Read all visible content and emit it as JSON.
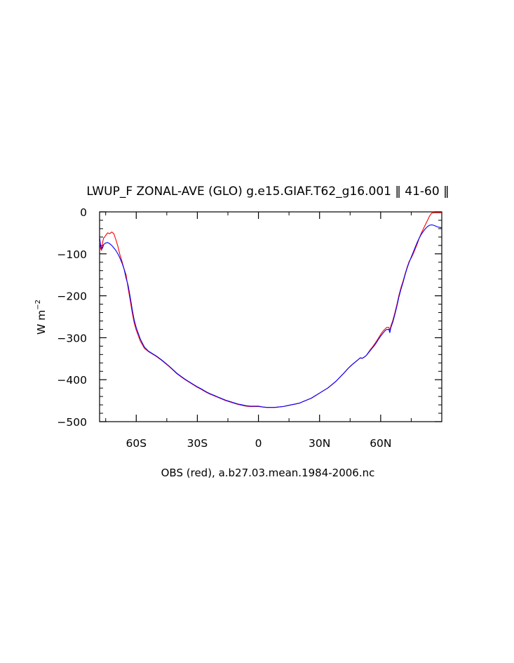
{
  "chart_data": {
    "type": "line",
    "title": "LWUP_F ZONAL-AVE (GLO) g.e15.GIAF.T62_g16.001 ‖ 41-60 ‖",
    "xlabel": "OBS (red), a.b27.03.mean.1984-2006.nc",
    "ylabel": {
      "base": "W m",
      "superscript": "−2"
    },
    "xlim": [
      -78,
      90
    ],
    "ylim": [
      -500,
      0
    ],
    "xticks": [
      {
        "value": -60,
        "label": "60S"
      },
      {
        "value": -30,
        "label": "30S"
      },
      {
        "value": 0,
        "label": "0"
      },
      {
        "value": 30,
        "label": "30N"
      },
      {
        "value": 60,
        "label": "60N"
      }
    ],
    "yticks": [
      {
        "value": 0,
        "label": "0"
      },
      {
        "value": -100,
        "label": "−100"
      },
      {
        "value": -200,
        "label": "−200"
      },
      {
        "value": -300,
        "label": "−300"
      },
      {
        "value": -400,
        "label": "−400"
      },
      {
        "value": -500,
        "label": "−500"
      }
    ],
    "series": [
      {
        "name": "OBS",
        "color": "#ff0000",
        "points": [
          [
            -78,
            -70
          ],
          [
            -77.5,
            -88
          ],
          [
            -77,
            -92
          ],
          [
            -76.5,
            -72
          ],
          [
            -76,
            -62
          ],
          [
            -75.5,
            -60
          ],
          [
            -75,
            -56
          ],
          [
            -74,
            -50
          ],
          [
            -73,
            -52
          ],
          [
            -72,
            -48
          ],
          [
            -71,
            -52
          ],
          [
            -70,
            -66
          ],
          [
            -69,
            -82
          ],
          [
            -68,
            -102
          ],
          [
            -67,
            -118
          ],
          [
            -66,
            -136
          ],
          [
            -65,
            -150
          ],
          [
            -64,
            -182
          ],
          [
            -63,
            -210
          ],
          [
            -62,
            -240
          ],
          [
            -61,
            -265
          ],
          [
            -60,
            -282
          ],
          [
            -58,
            -308
          ],
          [
            -56,
            -325
          ],
          [
            -54,
            -333
          ],
          [
            -52,
            -339
          ],
          [
            -50,
            -345
          ],
          [
            -48,
            -352
          ],
          [
            -46,
            -360
          ],
          [
            -44,
            -368
          ],
          [
            -42,
            -377
          ],
          [
            -40,
            -386
          ],
          [
            -38,
            -393
          ],
          [
            -36,
            -400
          ],
          [
            -34,
            -406
          ],
          [
            -32,
            -412
          ],
          [
            -30,
            -418
          ],
          [
            -28,
            -423
          ],
          [
            -26,
            -429
          ],
          [
            -24,
            -434
          ],
          [
            -22,
            -438
          ],
          [
            -20,
            -442
          ],
          [
            -18,
            -446
          ],
          [
            -16,
            -450
          ],
          [
            -14,
            -453
          ],
          [
            -12,
            -456
          ],
          [
            -10,
            -459
          ],
          [
            -8,
            -461
          ],
          [
            -6,
            -463
          ],
          [
            -4,
            -464
          ],
          [
            -2,
            -464
          ],
          [
            0,
            -464
          ],
          [
            2,
            -465
          ],
          [
            4,
            -466
          ],
          [
            6,
            -466
          ],
          [
            8,
            -466
          ],
          [
            10,
            -465
          ],
          [
            12,
            -464
          ],
          [
            14,
            -462
          ],
          [
            16,
            -460
          ],
          [
            18,
            -458
          ],
          [
            20,
            -456
          ],
          [
            22,
            -452
          ],
          [
            24,
            -448
          ],
          [
            26,
            -444
          ],
          [
            28,
            -438
          ],
          [
            30,
            -432
          ],
          [
            32,
            -426
          ],
          [
            34,
            -420
          ],
          [
            36,
            -412
          ],
          [
            38,
            -404
          ],
          [
            40,
            -394
          ],
          [
            42,
            -384
          ],
          [
            44,
            -373
          ],
          [
            46,
            -364
          ],
          [
            48,
            -356
          ],
          [
            49,
            -352
          ],
          [
            50,
            -348
          ],
          [
            51,
            -349
          ],
          [
            52,
            -346
          ],
          [
            53,
            -342
          ],
          [
            54,
            -335
          ],
          [
            55,
            -328
          ],
          [
            56,
            -322
          ],
          [
            57,
            -315
          ],
          [
            58,
            -308
          ],
          [
            59,
            -300
          ],
          [
            60,
            -292
          ],
          [
            61,
            -285
          ],
          [
            62,
            -280
          ],
          [
            63,
            -275
          ],
          [
            64,
            -275
          ],
          [
            64.5,
            -282
          ],
          [
            65,
            -272
          ],
          [
            66,
            -258
          ],
          [
            67,
            -240
          ],
          [
            68,
            -220
          ],
          [
            69,
            -198
          ],
          [
            70,
            -180
          ],
          [
            71,
            -165
          ],
          [
            72,
            -148
          ],
          [
            73,
            -132
          ],
          [
            74,
            -118
          ],
          [
            75,
            -110
          ],
          [
            76,
            -100
          ],
          [
            77,
            -88
          ],
          [
            78,
            -76
          ],
          [
            79,
            -62
          ],
          [
            80,
            -50
          ],
          [
            81,
            -40
          ],
          [
            82,
            -30
          ],
          [
            83,
            -20
          ],
          [
            84,
            -10
          ],
          [
            85,
            -3
          ],
          [
            86,
            -2
          ],
          [
            88,
            -2
          ],
          [
            90,
            -2
          ]
        ]
      },
      {
        "name": "g.e15.GIAF.T62_g16.001",
        "color": "#0000ff",
        "points": [
          [
            -78,
            -60
          ],
          [
            -77.5,
            -80
          ],
          [
            -77,
            -88
          ],
          [
            -76.5,
            -86
          ],
          [
            -76,
            -78
          ],
          [
            -75,
            -74
          ],
          [
            -74,
            -73
          ],
          [
            -73,
            -76
          ],
          [
            -72,
            -80
          ],
          [
            -71,
            -86
          ],
          [
            -70,
            -92
          ],
          [
            -69,
            -100
          ],
          [
            -68,
            -110
          ],
          [
            -67,
            -122
          ],
          [
            -66,
            -136
          ],
          [
            -65,
            -158
          ],
          [
            -64,
            -175
          ],
          [
            -63,
            -202
          ],
          [
            -62,
            -232
          ],
          [
            -61,
            -258
          ],
          [
            -60,
            -276
          ],
          [
            -58,
            -303
          ],
          [
            -56,
            -322
          ],
          [
            -54,
            -332
          ],
          [
            -52,
            -338
          ],
          [
            -50,
            -344
          ],
          [
            -48,
            -351
          ],
          [
            -46,
            -359
          ],
          [
            -44,
            -367
          ],
          [
            -42,
            -376
          ],
          [
            -40,
            -385
          ],
          [
            -38,
            -392
          ],
          [
            -36,
            -399
          ],
          [
            -34,
            -405
          ],
          [
            -32,
            -411
          ],
          [
            -30,
            -417
          ],
          [
            -28,
            -422
          ],
          [
            -26,
            -428
          ],
          [
            -24,
            -433
          ],
          [
            -22,
            -437
          ],
          [
            -20,
            -441
          ],
          [
            -18,
            -445
          ],
          [
            -16,
            -449
          ],
          [
            -14,
            -452
          ],
          [
            -12,
            -455
          ],
          [
            -10,
            -458
          ],
          [
            -8,
            -460
          ],
          [
            -6,
            -462
          ],
          [
            -4,
            -463
          ],
          [
            -2,
            -463
          ],
          [
            0,
            -463
          ],
          [
            2,
            -465
          ],
          [
            4,
            -466
          ],
          [
            6,
            -466
          ],
          [
            8,
            -466
          ],
          [
            10,
            -465
          ],
          [
            12,
            -464
          ],
          [
            14,
            -462
          ],
          [
            16,
            -460
          ],
          [
            18,
            -458
          ],
          [
            20,
            -456
          ],
          [
            22,
            -452
          ],
          [
            24,
            -448
          ],
          [
            26,
            -444
          ],
          [
            28,
            -438
          ],
          [
            30,
            -432
          ],
          [
            32,
            -426
          ],
          [
            34,
            -420
          ],
          [
            36,
            -412
          ],
          [
            38,
            -404
          ],
          [
            40,
            -394
          ],
          [
            42,
            -384
          ],
          [
            44,
            -373
          ],
          [
            46,
            -364
          ],
          [
            48,
            -356
          ],
          [
            49,
            -352
          ],
          [
            50,
            -348
          ],
          [
            51,
            -349
          ],
          [
            52,
            -346
          ],
          [
            53,
            -342
          ],
          [
            54,
            -336
          ],
          [
            55,
            -330
          ],
          [
            56,
            -324
          ],
          [
            57,
            -318
          ],
          [
            58,
            -311
          ],
          [
            59,
            -303
          ],
          [
            60,
            -296
          ],
          [
            61,
            -290
          ],
          [
            62,
            -284
          ],
          [
            63,
            -280
          ],
          [
            64,
            -280
          ],
          [
            64.5,
            -288
          ],
          [
            65,
            -276
          ],
          [
            66,
            -262
          ],
          [
            67,
            -244
          ],
          [
            68,
            -224
          ],
          [
            69,
            -202
          ],
          [
            70,
            -184
          ],
          [
            71,
            -168
          ],
          [
            72,
            -150
          ],
          [
            73,
            -134
          ],
          [
            74,
            -120
          ],
          [
            75,
            -108
          ],
          [
            76,
            -96
          ],
          [
            77,
            -84
          ],
          [
            78,
            -72
          ],
          [
            79,
            -62
          ],
          [
            80,
            -53
          ],
          [
            81,
            -46
          ],
          [
            82,
            -40
          ],
          [
            83,
            -35
          ],
          [
            84,
            -32
          ],
          [
            85,
            -31
          ],
          [
            86,
            -32
          ],
          [
            87,
            -34
          ],
          [
            88,
            -36
          ],
          [
            89,
            -37
          ],
          [
            90,
            -38
          ]
        ]
      }
    ]
  }
}
